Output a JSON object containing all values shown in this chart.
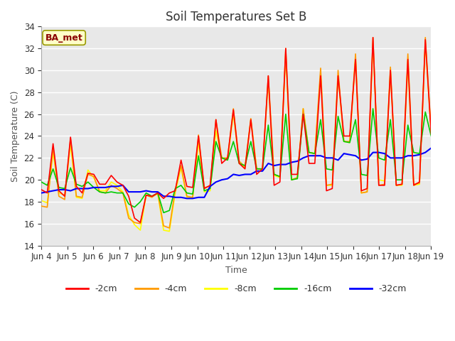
{
  "title": "Soil Temperatures Set B",
  "xlabel": "Time",
  "ylabel": "Soil Temperature (C)",
  "ylim": [
    14,
    34
  ],
  "annotation": "BA_met",
  "line_colors": {
    "-2cm": "#ff0000",
    "-4cm": "#ff9900",
    "-8cm": "#ffff00",
    "-16cm": "#00cc00",
    "-32cm": "#0000ff"
  },
  "bg_color": "#e8e8e8",
  "x_tick_labels": [
    "Jun 4",
    "Jun 5",
    "Jun 6",
    "Jun 7",
    "Jun 8",
    "Jun 9",
    "Jun 10",
    "Jun 11",
    "Jun 12",
    "Jun 13",
    "Jun 14",
    "Jun 15",
    "Jun 16",
    "Jun 17",
    "Jun 18",
    "Jun 19"
  ],
  "t_2cm": [
    19.1,
    18.8,
    23.3,
    19.0,
    18.5,
    23.9,
    19.4,
    18.8,
    20.6,
    20.5,
    19.6,
    19.6,
    20.4,
    19.8,
    19.5,
    18.5,
    16.5,
    16.1,
    18.6,
    18.5,
    18.8,
    18.3,
    18.8,
    19.0,
    21.8,
    19.4,
    19.3,
    24.0,
    19.2,
    19.5,
    25.5,
    21.5,
    22.0,
    26.4,
    21.5,
    21.0,
    25.5,
    20.5,
    21.0,
    29.5,
    19.5,
    19.8,
    32.0,
    20.5,
    20.5,
    26.0,
    21.5,
    21.5,
    29.5,
    19.0,
    19.2,
    29.5,
    24.0,
    24.0,
    31.0,
    19.0,
    19.2,
    33.0,
    19.5,
    19.5,
    30.0,
    19.5,
    19.6,
    31.0,
    19.5,
    19.8,
    32.8,
    24.2
  ],
  "t_4cm": [
    17.6,
    17.5,
    23.0,
    18.5,
    18.2,
    23.8,
    18.5,
    18.4,
    20.5,
    20.3,
    18.9,
    18.8,
    19.5,
    19.2,
    18.8,
    16.5,
    16.1,
    16.0,
    18.6,
    18.4,
    18.8,
    15.8,
    15.6,
    19.1,
    21.3,
    18.5,
    18.4,
    24.1,
    19.3,
    19.4,
    25.5,
    22.0,
    22.0,
    26.5,
    21.7,
    21.2,
    25.6,
    21.0,
    21.0,
    29.5,
    20.5,
    20.3,
    32.0,
    20.0,
    20.2,
    26.5,
    22.5,
    22.4,
    30.2,
    19.5,
    19.6,
    30.0,
    23.5,
    23.5,
    31.5,
    18.8,
    18.9,
    33.0,
    19.5,
    19.6,
    30.3,
    19.5,
    19.6,
    31.5,
    19.6,
    19.7,
    33.0,
    24.5
  ],
  "t_8cm": [
    18.1,
    17.9,
    22.5,
    18.8,
    18.6,
    23.2,
    18.4,
    18.3,
    20.9,
    20.2,
    19.0,
    19.0,
    19.8,
    19.5,
    18.9,
    16.8,
    15.9,
    15.4,
    18.6,
    18.5,
    18.7,
    15.4,
    15.3,
    18.8,
    21.1,
    18.4,
    18.3,
    23.5,
    18.9,
    19.0,
    24.5,
    22.0,
    21.8,
    26.0,
    21.5,
    21.1,
    25.5,
    21.0,
    21.0,
    29.0,
    20.4,
    20.2,
    31.5,
    20.0,
    20.2,
    26.5,
    22.5,
    22.4,
    29.8,
    19.5,
    19.5,
    29.5,
    23.5,
    23.4,
    31.2,
    18.8,
    18.9,
    32.5,
    20.0,
    19.9,
    30.0,
    19.5,
    19.5,
    30.5,
    19.5,
    19.6,
    32.5,
    24.2
  ],
  "t_16cm": [
    19.8,
    19.5,
    21.0,
    19.3,
    19.2,
    21.1,
    19.6,
    19.4,
    19.8,
    19.3,
    18.9,
    18.8,
    18.9,
    18.8,
    18.8,
    17.8,
    17.5,
    18.0,
    18.8,
    18.5,
    18.8,
    17.0,
    17.2,
    19.2,
    19.5,
    18.8,
    18.7,
    22.2,
    19.0,
    19.2,
    23.5,
    22.0,
    21.8,
    23.5,
    21.5,
    21.3,
    23.5,
    21.0,
    21.0,
    25.0,
    20.5,
    20.3,
    26.0,
    20.0,
    20.1,
    26.0,
    22.5,
    22.4,
    25.5,
    21.0,
    20.9,
    25.8,
    23.5,
    23.4,
    25.5,
    20.5,
    20.4,
    26.5,
    22.0,
    21.8,
    25.5,
    20.0,
    20.0,
    25.0,
    22.5,
    22.4,
    26.2,
    24.0
  ],
  "t_32cm": [
    18.8,
    18.9,
    19.0,
    19.1,
    19.1,
    19.0,
    19.2,
    19.2,
    19.2,
    19.3,
    19.3,
    19.3,
    19.4,
    19.4,
    19.5,
    18.9,
    18.9,
    18.9,
    19.0,
    18.9,
    18.9,
    18.5,
    18.5,
    18.4,
    18.4,
    18.3,
    18.3,
    18.4,
    18.4,
    19.4,
    19.8,
    20.0,
    20.1,
    20.5,
    20.4,
    20.5,
    20.5,
    20.8,
    20.8,
    21.5,
    21.3,
    21.4,
    21.4,
    21.6,
    21.7,
    22.0,
    22.2,
    22.2,
    22.2,
    22.0,
    22.0,
    21.8,
    22.4,
    22.3,
    22.2,
    21.8,
    21.9,
    22.5,
    22.5,
    22.4,
    22.0,
    22.0,
    22.0,
    22.2,
    22.2,
    22.3,
    22.5,
    22.9
  ]
}
